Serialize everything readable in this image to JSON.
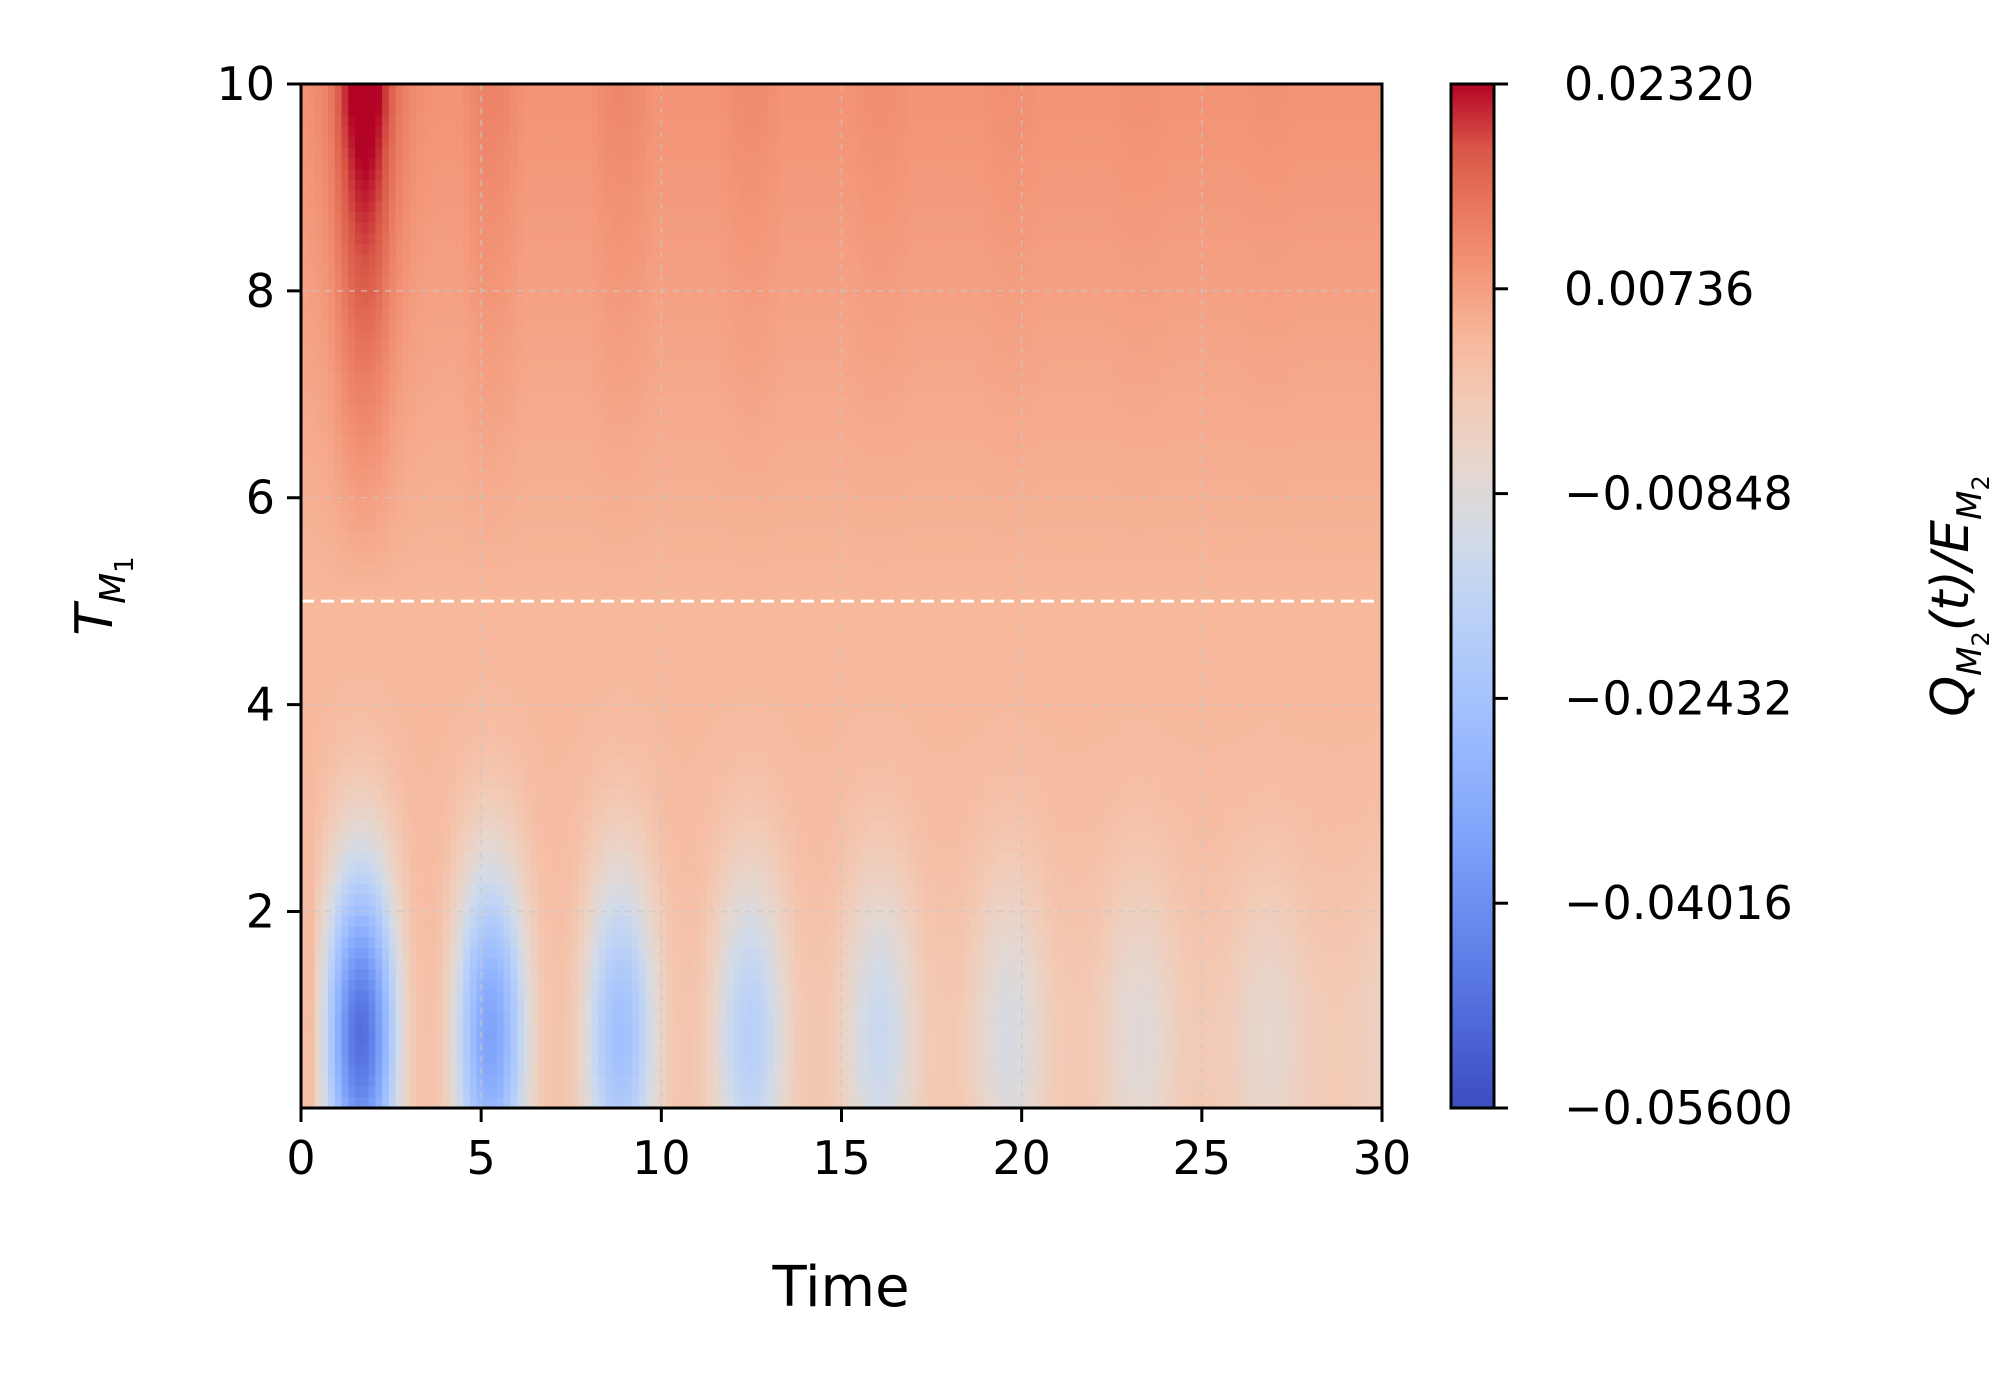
{
  "chart_data": {
    "type": "heatmap",
    "xlabel": "Time",
    "ylabel_main": "T",
    "ylabel_sub": "M",
    "ylabel_subsub": "1",
    "xlim": [
      0,
      30
    ],
    "ylim": [
      0.1,
      10
    ],
    "x_ticks": [
      "0",
      "5",
      "10",
      "15",
      "20",
      "25",
      "30"
    ],
    "x_tick_values": [
      0,
      5,
      10,
      15,
      20,
      25,
      30
    ],
    "y_ticks": [
      "2",
      "4",
      "6",
      "8",
      "10"
    ],
    "y_tick_values": [
      2,
      4,
      6,
      8,
      10
    ],
    "grid": true,
    "colormap": "coolwarm",
    "reference_line": {
      "y": 5,
      "style": "dashed",
      "color": "#ffffff"
    },
    "colorbar": {
      "label_main": "Q",
      "label_sub": "M",
      "label_subsub": "2",
      "label_mid": "(t)/E",
      "label_sub2": "M",
      "label_subsub2": "2",
      "range": [
        -0.056,
        0.0232
      ],
      "ticks": [
        "0.02320",
        "0.00736",
        "−0.00848",
        "−0.02432",
        "−0.04016",
        "−0.05600"
      ],
      "tick_values": [
        0.0232,
        0.00736,
        -0.00848,
        -0.02432,
        -0.04016,
        -0.056
      ]
    },
    "field_model": {
      "description_free": true,
      "t_min": 0,
      "t_max": 30,
      "T_min": 0.1,
      "T_max": 10,
      "T_split": 5,
      "period": 3.6,
      "low_T_amplitude": -0.056,
      "decay": 0.09,
      "high_T_peak": 0.0232
    }
  }
}
